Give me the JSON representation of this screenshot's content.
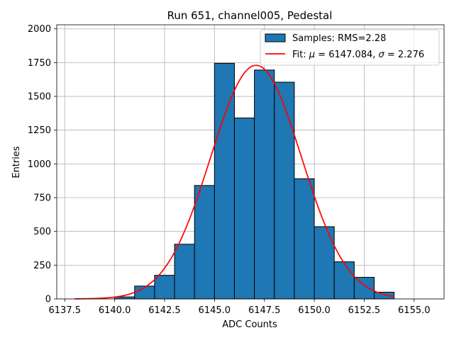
{
  "chart_data": {
    "type": "bar",
    "title": "Run 651, channel005, Pedestal",
    "xlabel": "ADC Counts",
    "ylabel": "Entries",
    "xlim": [
      6137.1,
      6156.5
    ],
    "ylim": [
      0,
      2030
    ],
    "xticks": [
      6137.5,
      6140.0,
      6142.5,
      6145.0,
      6147.5,
      6150.0,
      6152.5,
      6155.0
    ],
    "xtick_labels": [
      "6137.5",
      "6140.0",
      "6142.5",
      "6145.0",
      "6147.5",
      "6150.0",
      "6152.5",
      "6155.0"
    ],
    "yticks": [
      0,
      250,
      500,
      750,
      1000,
      1250,
      1500,
      1750,
      2000
    ],
    "ytick_labels": [
      "0",
      "250",
      "500",
      "750",
      "1000",
      "1250",
      "1500",
      "1750",
      "2000"
    ],
    "grid": true,
    "legend_position": "top-right",
    "histogram": {
      "name": "Samples: RMS=2.28",
      "color": "#1f77b4",
      "bin_edges": [
        6140.0,
        6141.0,
        6142.0,
        6143.0,
        6144.0,
        6145.0,
        6146.0,
        6147.0,
        6148.0,
        6149.0,
        6150.0,
        6151.0,
        6152.0,
        6153.0,
        6154.0
      ],
      "values": [
        15,
        95,
        175,
        405,
        840,
        1745,
        1340,
        1695,
        1605,
        890,
        535,
        275,
        160,
        50
      ]
    },
    "fit": {
      "name_prefix": "Fit: ",
      "mu_symbol": "μ",
      "mu_text": " = 6147.084, ",
      "sigma_symbol": "σ",
      "sigma_text": " = 2.276",
      "color": "#ff0000",
      "mu": 6147.084,
      "sigma": 2.276,
      "amplitude": 1730,
      "x_range": [
        6138.0,
        6154.0
      ]
    }
  }
}
